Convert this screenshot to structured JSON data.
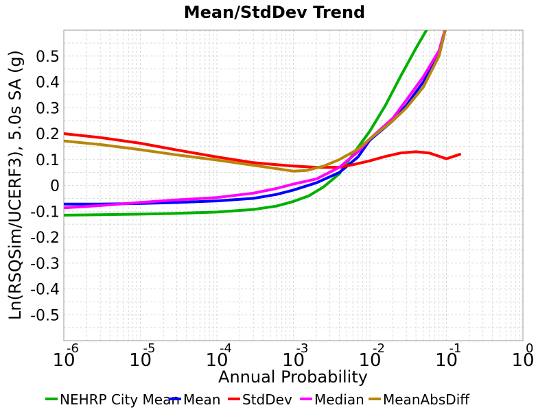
{
  "chart_data": {
    "type": "line",
    "title": "Mean/StdDev Trend",
    "xlabel": "Annual Probability",
    "ylabel": "Ln(RSQSim/UCERF3), 5.0s SA (g)",
    "x_scale": "log",
    "xlim": [
      1e-06,
      1
    ],
    "ylim": [
      -0.6,
      0.6
    ],
    "grid": true,
    "legend_position": "bottom",
    "x_ticks": [
      {
        "base": "10",
        "exp": "-6"
      },
      {
        "base": "10",
        "exp": "-5"
      },
      {
        "base": "10",
        "exp": "-4"
      },
      {
        "base": "10",
        "exp": "-3"
      },
      {
        "base": "10",
        "exp": "-2"
      },
      {
        "base": "10",
        "exp": "-1"
      },
      {
        "base": "10",
        "exp": "0"
      }
    ],
    "y_ticks": [
      "0.5",
      "0.4",
      "0.3",
      "0.2",
      "0.1",
      "0",
      "-0.1",
      "-0.2",
      "-0.3",
      "-0.4",
      "-0.5"
    ],
    "series": [
      {
        "name": "NEHRP City Mean",
        "color": "#00b000",
        "x": [
          1e-06,
          3e-06,
          1e-05,
          3e-05,
          0.0001,
          0.0003,
          0.0006,
          0.001,
          0.0016,
          0.0025,
          0.004,
          0.006,
          0.01,
          0.016,
          0.025,
          0.04,
          0.06
        ],
        "y": [
          -0.115,
          -0.113,
          -0.111,
          -0.108,
          -0.103,
          -0.093,
          -0.08,
          -0.062,
          -0.04,
          -0.005,
          0.045,
          0.12,
          0.21,
          0.31,
          0.42,
          0.53,
          0.62
        ]
      },
      {
        "name": "Mean",
        "color": "#0000ff",
        "x": [
          1e-06,
          3e-06,
          1e-05,
          3e-05,
          0.0001,
          0.0003,
          0.0006,
          0.001,
          0.002,
          0.004,
          0.007,
          0.01,
          0.02,
          0.03,
          0.05,
          0.08,
          0.1
        ],
        "y": [
          -0.072,
          -0.072,
          -0.07,
          -0.066,
          -0.06,
          -0.05,
          -0.035,
          -0.018,
          0.01,
          0.05,
          0.11,
          0.175,
          0.25,
          0.31,
          0.4,
          0.5,
          0.62
        ]
      },
      {
        "name": "StdDev",
        "color": "#ff0000",
        "x": [
          1e-06,
          3e-06,
          1e-05,
          3e-05,
          0.0001,
          0.0003,
          0.0006,
          0.001,
          0.002,
          0.004,
          0.006,
          0.01,
          0.016,
          0.025,
          0.04,
          0.06,
          0.1,
          0.15
        ],
        "y": [
          0.2,
          0.185,
          0.163,
          0.137,
          0.11,
          0.088,
          0.08,
          0.075,
          0.07,
          0.07,
          0.08,
          0.095,
          0.112,
          0.125,
          0.13,
          0.125,
          0.103,
          0.12
        ]
      },
      {
        "name": "Median",
        "color": "#ff00ff",
        "x": [
          1e-06,
          3e-06,
          1e-05,
          3e-05,
          0.0001,
          0.0003,
          0.0006,
          0.001,
          0.002,
          0.004,
          0.007,
          0.01,
          0.02,
          0.03,
          0.05,
          0.08,
          0.1
        ],
        "y": [
          -0.087,
          -0.078,
          -0.066,
          -0.056,
          -0.047,
          -0.03,
          -0.012,
          0.005,
          0.025,
          0.07,
          0.13,
          0.18,
          0.26,
          0.33,
          0.42,
          0.52,
          0.62
        ]
      },
      {
        "name": "MeanAbsDiff",
        "color": "#b8860b",
        "x": [
          1e-06,
          3e-06,
          1e-05,
          3e-05,
          0.0001,
          0.0003,
          0.0006,
          0.001,
          0.0015,
          0.0025,
          0.004,
          0.007,
          0.01,
          0.02,
          0.03,
          0.05,
          0.08,
          0.1
        ],
        "y": [
          0.172,
          0.158,
          0.138,
          0.118,
          0.098,
          0.078,
          0.065,
          0.055,
          0.058,
          0.075,
          0.1,
          0.14,
          0.18,
          0.25,
          0.3,
          0.38,
          0.5,
          0.62
        ]
      }
    ]
  }
}
